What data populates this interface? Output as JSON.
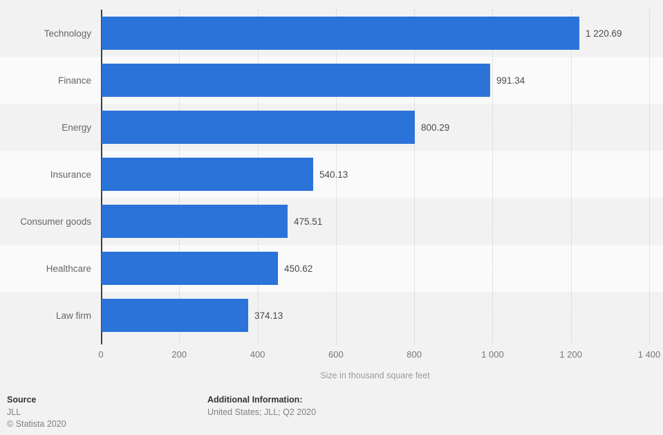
{
  "chart_data": {
    "type": "bar",
    "orientation": "horizontal",
    "title": "",
    "categories": [
      "Technology",
      "Finance",
      "Energy",
      "Insurance",
      "Consumer goods",
      "Healthcare",
      "Law firm"
    ],
    "values": [
      1220.69,
      991.34,
      800.29,
      540.13,
      475.51,
      450.62,
      374.13
    ],
    "value_labels": [
      "1 220.69",
      "991.34",
      "800.29",
      "540.13",
      "475.51",
      "450.62",
      "374.13"
    ],
    "xlabel": "Size in thousand square feet",
    "ylabel": "",
    "xlim": [
      0,
      1400
    ],
    "xticks": [
      0,
      200,
      400,
      600,
      800,
      1000,
      1200,
      1400
    ],
    "xtick_labels": [
      "0",
      "200",
      "400",
      "600",
      "800",
      "1 000",
      "1 200",
      "1 400"
    ],
    "grid": true,
    "legend": false,
    "bar_color": "#2b73d9"
  },
  "colors": {
    "background": "#f2f2f2",
    "band_alt": "#fafafa",
    "bar": "#2b73d9",
    "axis_line": "#3d3d3d",
    "gridline": "#cccccc",
    "category_label": "#666666",
    "value_label": "#4a4a4a",
    "tick_label": "#757575",
    "axis_title": "#9b9b9b"
  },
  "footer": {
    "source_heading": "Source",
    "source_name": "JLL",
    "copyright": "© Statista 2020",
    "additional_heading": "Additional Information:",
    "additional_text": "United States; JLL; Q2 2020"
  }
}
